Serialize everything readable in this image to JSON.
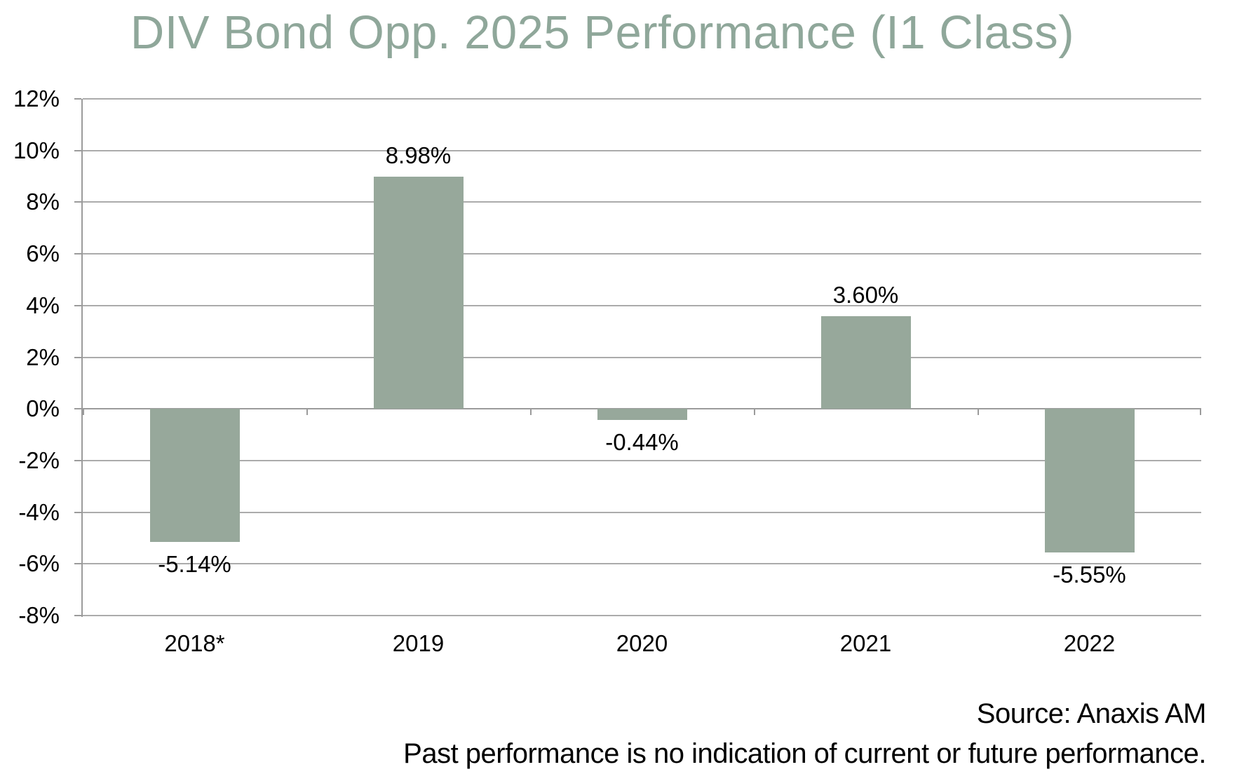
{
  "chart_data": {
    "type": "bar",
    "title": "DIV Bond Opp. 2025 Performance (I1 Class)",
    "categories": [
      "2018*",
      "2019",
      "2020",
      "2021",
      "2022"
    ],
    "values": [
      -5.14,
      8.98,
      -0.44,
      3.6,
      -5.55
    ],
    "value_labels": [
      "-5.14%",
      "8.98%",
      "-0.44%",
      "3.60%",
      "-5.55%"
    ],
    "y_axis": {
      "min": -8,
      "max": 12,
      "tick_step": 2,
      "ticks": [
        12,
        10,
        8,
        6,
        4,
        2,
        0,
        -2,
        -4,
        -6,
        -8
      ],
      "tick_labels": [
        "12%",
        "10%",
        "8%",
        "6%",
        "4%",
        "2%",
        "0%",
        "-2%",
        "-4%",
        "-6%",
        "-8%"
      ]
    },
    "grid": true,
    "legend": false,
    "colors": {
      "bar": "#97a89b",
      "title": "#8fa79a",
      "gridline": "#ababab",
      "axis": "#9b9b9b",
      "text": "#000000"
    }
  },
  "footer": {
    "source": "Source: Anaxis AM",
    "disclaimer": "Past performance is no indication of current or future performance."
  }
}
